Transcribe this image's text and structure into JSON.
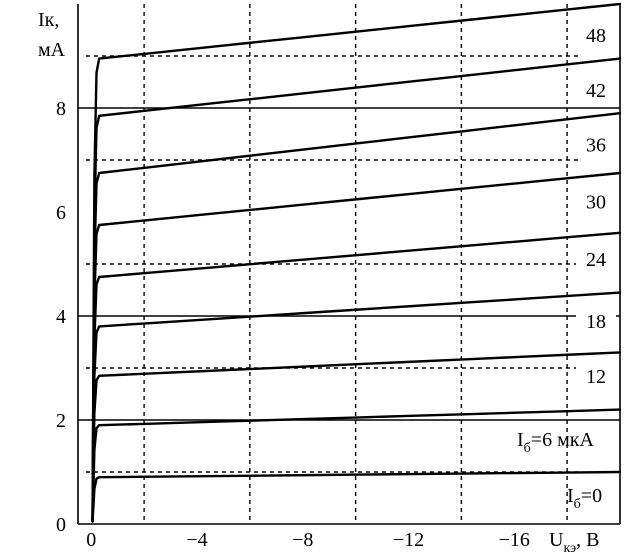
{
  "chart_data": {
    "type": "line",
    "title": "",
    "ylabel_lines": [
      "Iк,",
      "мА"
    ],
    "xlabel_main": "U",
    "xlabel_sub": "кэ",
    "xlabel_tail": ", В",
    "xlim": [
      0.5,
      -20
    ],
    "ylim": [
      0,
      10
    ],
    "x_ticks": [
      {
        "value": 0,
        "label": "0"
      },
      {
        "value": -4,
        "label": "−4"
      },
      {
        "value": -8,
        "label": "−8"
      },
      {
        "value": -12,
        "label": "−12"
      },
      {
        "value": -16,
        "label": "−16"
      }
    ],
    "y_ticks": [
      {
        "value": 0,
        "label": "0"
      },
      {
        "value": 2,
        "label": "2"
      },
      {
        "value": 4,
        "label": "4"
      },
      {
        "value": 6,
        "label": "6"
      },
      {
        "value": 8,
        "label": "8"
      }
    ],
    "grid_solid_y": [
      2,
      4,
      8
    ],
    "grid_dash_y": [
      1,
      3,
      5,
      7,
      9
    ],
    "grid_dash_x": [
      -2,
      -6,
      -10,
      -14,
      -18
    ],
    "series": [
      {
        "name": "Iб=0",
        "knee": 0.9,
        "end": 1.0
      },
      {
        "name": "Iб=6 мкА",
        "knee": 1.9,
        "end": 2.2
      },
      {
        "name": "12",
        "knee": 2.85,
        "end": 3.3
      },
      {
        "name": "18",
        "knee": 3.8,
        "end": 4.45
      },
      {
        "name": "24",
        "knee": 4.75,
        "end": 5.6
      },
      {
        "name": "30",
        "knee": 5.75,
        "end": 6.75
      },
      {
        "name": "36",
        "knee": 6.75,
        "end": 7.9
      },
      {
        "name": "42",
        "knee": 7.85,
        "end": 8.95
      },
      {
        "name": "48",
        "knee": 8.95,
        "end": 10.0
      }
    ],
    "curve_labels": [
      {
        "text": "48",
        "y": 9.4
      },
      {
        "text": "42",
        "y": 8.35
      },
      {
        "text": "36",
        "y": 7.3
      },
      {
        "text": "30",
        "y": 6.2
      },
      {
        "text": "24",
        "y": 5.1
      },
      {
        "text": "18",
        "y": 3.9
      },
      {
        "text": "12",
        "y": 2.85
      }
    ],
    "label_ib6_main": "I",
    "label_ib6_sub": "б",
    "label_ib6_tail": "=6 мкА",
    "label_ib0_main": "I",
    "label_ib0_sub": "б",
    "label_ib0_tail": "=0"
  }
}
